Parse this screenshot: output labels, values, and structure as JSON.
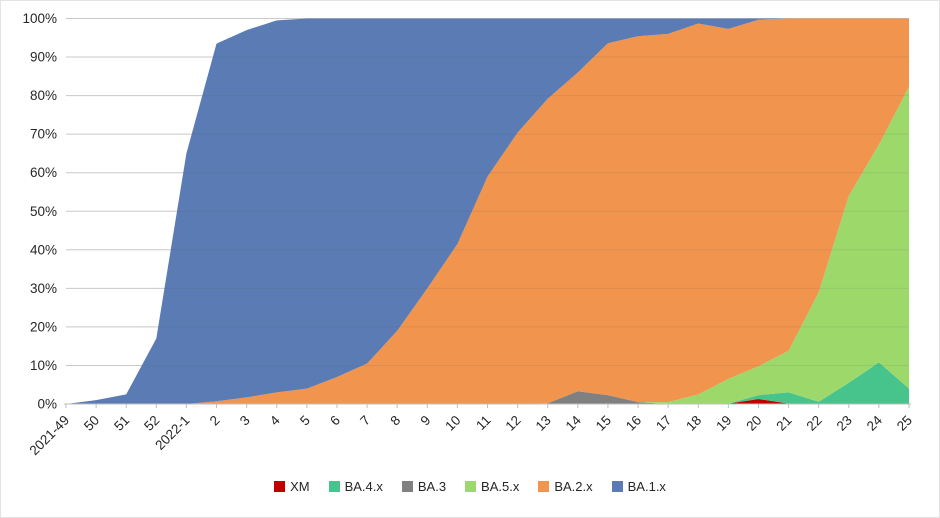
{
  "chart_data": {
    "type": "area",
    "stacked": true,
    "percent_y_axis": true,
    "title": "",
    "categories": [
      "2021-49",
      "50",
      "51",
      "52",
      "2022-1",
      "2",
      "3",
      "4",
      "5",
      "6",
      "7",
      "8",
      "9",
      "10",
      "11",
      "12",
      "13",
      "14",
      "15",
      "16",
      "17",
      "18",
      "19",
      "20",
      "21",
      "22",
      "23",
      "24",
      "25"
    ],
    "series": [
      {
        "name": "XM",
        "color": "#C00000",
        "values": [
          0,
          0,
          0,
          0,
          0,
          0,
          0,
          0,
          0,
          0,
          0,
          0,
          0,
          0,
          0,
          0,
          0,
          0,
          0,
          0,
          0,
          0,
          0.1,
          1.3,
          0.1,
          0,
          0,
          0,
          0
        ]
      },
      {
        "name": "BA.4.x",
        "color": "#47C38C",
        "values": [
          0,
          0,
          0,
          0,
          0,
          0,
          0,
          0,
          0,
          0,
          0,
          0,
          0,
          0,
          0,
          0,
          0,
          0,
          0,
          0,
          0,
          0,
          0,
          1,
          2.9,
          0.6,
          5.5,
          10.8,
          4
        ]
      },
      {
        "name": "BA.3",
        "color": "#808080",
        "values": [
          0,
          0,
          0,
          0,
          0,
          0,
          0,
          0,
          0,
          0,
          0,
          0,
          0,
          0,
          0,
          0,
          0.2,
          3.3,
          2.3,
          0.5,
          0,
          0,
          0,
          0,
          0,
          0,
          0,
          0,
          0
        ]
      },
      {
        "name": "BA.5.x",
        "color": "#9CD96A",
        "values": [
          0,
          0,
          0,
          0,
          0,
          0,
          0,
          0,
          0,
          0,
          0,
          0,
          0,
          0,
          0,
          0,
          0,
          0,
          0,
          0,
          0.5,
          2.5,
          6.4,
          7.5,
          10.8,
          28.4,
          48.5,
          56.5,
          78.3
        ]
      },
      {
        "name": "BA.2.x",
        "color": "#F0944E",
        "values": [
          0,
          0,
          0,
          0,
          0,
          0.7,
          1.7,
          3,
          4,
          7,
          10.5,
          19,
          30,
          41.5,
          59,
          70.4,
          79,
          82.7,
          91.3,
          94.9,
          95.5,
          96.2,
          90.8,
          89.9,
          86.2,
          71,
          46,
          32.7,
          17.7
        ]
      },
      {
        "name": "BA.1.x",
        "color": "#5B7BB4",
        "values": [
          0,
          1,
          2.5,
          17,
          65,
          92.8,
          95.3,
          96.5,
          96,
          93,
          89.5,
          81,
          70,
          58.5,
          41,
          29.6,
          20.8,
          14,
          6.4,
          4.6,
          4,
          1.3,
          2.7,
          0.3,
          0,
          0,
          0,
          0,
          0
        ]
      }
    ],
    "y_tick_labels": [
      "0%",
      "10%",
      "20%",
      "30%",
      "40%",
      "50%",
      "60%",
      "70%",
      "80%",
      "90%",
      "100%"
    ],
    "ylim": [
      0,
      100
    ],
    "grid": "horizontal",
    "legend_position": "bottom",
    "legend": [
      "XM",
      "BA.4.x",
      "BA.3",
      "BA.5.x",
      "BA.2.x",
      "BA.1.x"
    ]
  },
  "colors": {
    "grid": "#D9D9D9",
    "grid_overlay": "rgba(90,90,90,0.12)",
    "axis": "#BFBFBF",
    "text": "#262626",
    "background": "#FFFFFF"
  }
}
